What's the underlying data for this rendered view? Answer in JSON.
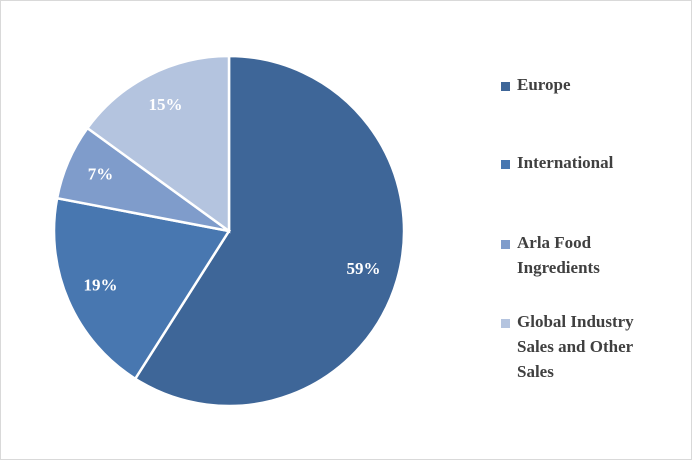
{
  "chart_data": {
    "type": "pie",
    "categories": [
      "Europe",
      "International",
      "Arla Food Ingredients",
      "Global Industry Sales and Other Sales"
    ],
    "values": [
      59,
      19,
      7,
      15
    ],
    "value_labels": [
      "59%",
      "19%",
      "7%",
      "15%"
    ],
    "colors": [
      "#3e6698",
      "#4877b0",
      "#7f9ccb",
      "#b4c4df"
    ],
    "legend": "right"
  }
}
